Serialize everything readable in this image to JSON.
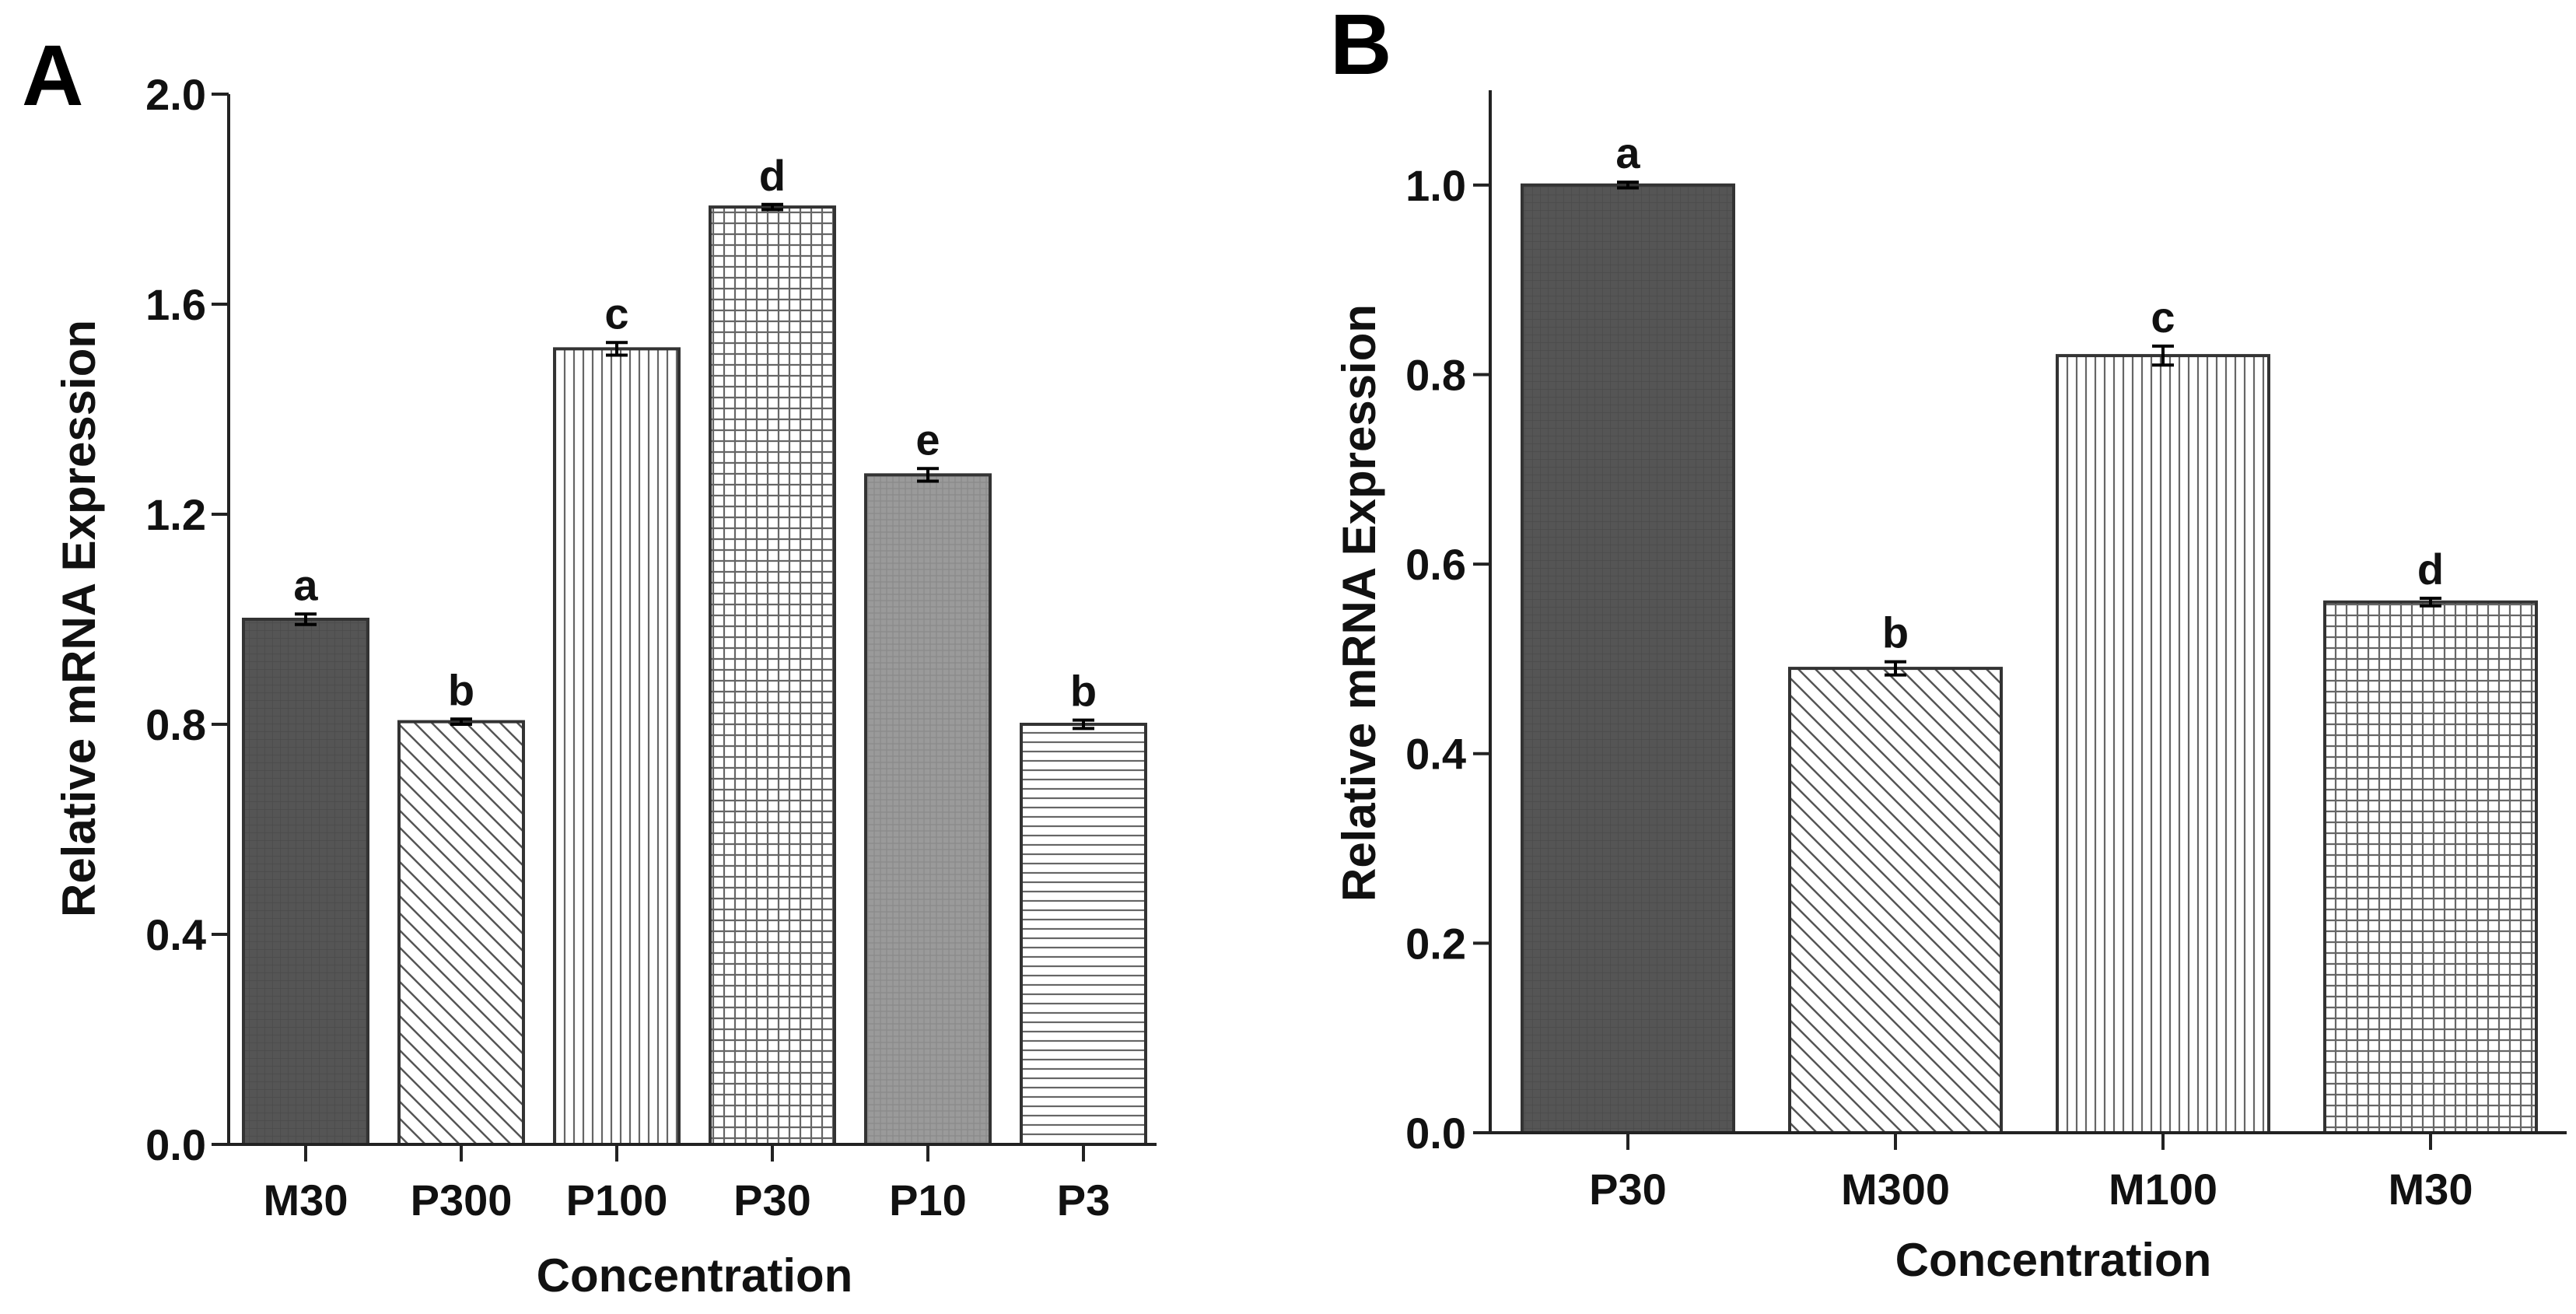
{
  "chart_data": [
    {
      "panel_label": "A",
      "type": "bar",
      "xlabel": "Concentration",
      "ylabel": "Relative mRNA Expression",
      "ylim": [
        0,
        2.0
      ],
      "yticks": [
        "0.0",
        "0.4",
        "0.8",
        "1.2",
        "1.6",
        "2.0"
      ],
      "categories": [
        "M30",
        "P300",
        "P100",
        "P30",
        "P10",
        "P3"
      ],
      "values": [
        1.0,
        0.805,
        1.515,
        1.785,
        1.275,
        0.8
      ],
      "errors": [
        0.01,
        0.005,
        0.012,
        0.005,
        0.012,
        0.008
      ],
      "letters": [
        "a",
        "b",
        "c",
        "d",
        "e",
        "b"
      ],
      "patterns": [
        "solid-dark",
        "diagonal",
        "vertical",
        "grid",
        "grey-fine",
        "horizontal"
      ]
    },
    {
      "panel_label": "B",
      "type": "bar",
      "xlabel": "Concentration",
      "ylabel": "Relative mRNA Expression",
      "ylim": [
        0,
        1.1
      ],
      "yticks": [
        "0.0",
        "0.2",
        "0.4",
        "0.6",
        "0.8",
        "1.0"
      ],
      "categories": [
        "P30",
        "M300",
        "M100",
        "M30"
      ],
      "values": [
        1.0,
        0.49,
        0.82,
        0.56
      ],
      "errors": [
        0.003,
        0.007,
        0.01,
        0.004
      ],
      "letters": [
        "a",
        "b",
        "c",
        "d"
      ],
      "patterns": [
        "solid-dark",
        "diagonal",
        "vertical",
        "grid"
      ]
    }
  ]
}
